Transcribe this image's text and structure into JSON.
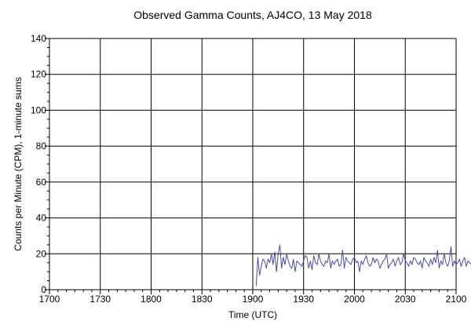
{
  "chart_data": {
    "type": "line",
    "title": "Observed Gamma Counts, AJ4CO, 13 May 2018",
    "xlabel": "Time (UTC)",
    "ylabel": "Counts per Minute (CPM), 1-minute sums",
    "x_tick_labels": [
      "1700",
      "1730",
      "1800",
      "1830",
      "1900",
      "1930",
      "2000",
      "2030",
      "2100"
    ],
    "y_tick_labels": [
      "0",
      "20",
      "40",
      "60",
      "80",
      "100",
      "120",
      "140"
    ],
    "xlim_minutes": [
      0,
      240
    ],
    "ylim": [
      0,
      140
    ],
    "grid": true,
    "line_color": "#4a4aa8",
    "series": [
      {
        "x_start_minute": 122,
        "values": [
          2,
          18,
          8,
          13,
          17,
          16,
          12,
          17,
          15,
          20,
          14,
          21,
          10,
          20,
          25,
          12,
          18,
          14,
          20,
          16,
          13,
          12,
          17,
          10,
          16,
          15,
          14,
          13,
          16,
          19,
          18,
          12,
          16,
          11,
          19,
          15,
          14,
          20,
          16,
          14,
          13,
          16,
          15,
          20,
          12,
          16,
          14,
          16,
          17,
          13,
          14,
          22,
          12,
          18,
          16,
          15,
          14,
          17,
          18,
          15,
          16,
          10,
          16,
          14,
          17,
          19,
          15,
          13,
          14,
          18,
          15,
          17,
          16,
          12,
          14,
          16,
          17,
          20,
          12,
          14,
          15,
          17,
          13,
          16,
          18,
          14,
          15,
          20,
          16,
          15,
          13,
          16,
          14,
          18,
          17,
          15,
          14,
          16,
          12,
          18,
          16,
          15,
          13,
          17,
          14,
          18,
          15,
          22,
          12,
          16,
          14,
          20,
          15,
          13,
          16,
          24,
          13,
          16,
          14,
          15,
          17,
          13,
          16,
          18,
          13,
          16,
          15,
          14,
          16,
          15,
          17,
          13,
          15,
          16,
          15,
          15
        ]
      }
    ]
  }
}
